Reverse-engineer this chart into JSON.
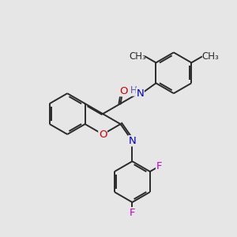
{
  "bg_color": "#e6e6e6",
  "bond_color": "#2a2a2a",
  "bond_width": 1.4,
  "atom_colors": {
    "N": "#0000cc",
    "O": "#cc0000",
    "F": "#cc00cc",
    "H": "#5555aa"
  },
  "font_size_atom": 9.5,
  "font_size_methyl": 8.5
}
